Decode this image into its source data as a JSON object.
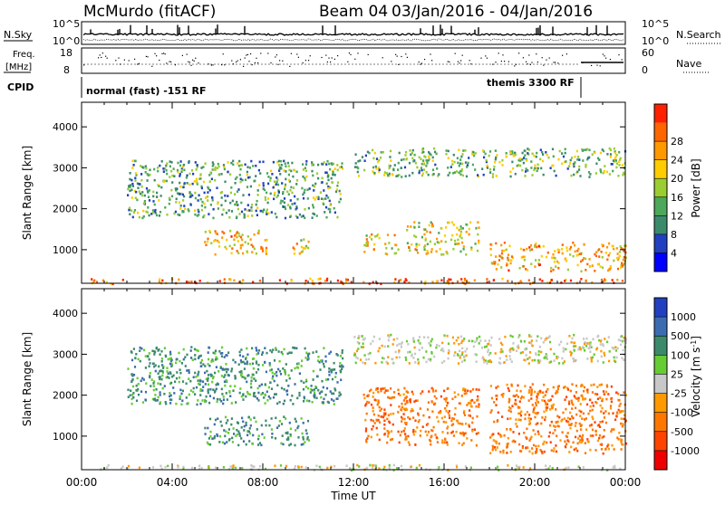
{
  "header": {
    "station": "McMurdo (fitACF)",
    "beam": "Beam 04",
    "dates": "03/Jan/2016 - 04/Jan/2016"
  },
  "top_panels": {
    "nsky_label": "N.Sky",
    "nsky_ticks": [
      "10^5",
      "10^0"
    ],
    "nsearch_label": "N.Search",
    "nsearch_ticks": [
      "10^5",
      "10^0"
    ],
    "freq_label_1": "Freq.",
    "freq_label_2": "[MHz]",
    "freq_ticks": [
      "18",
      "8"
    ],
    "nave_label": "Nave",
    "nave_ticks": [
      "60",
      "0"
    ],
    "cpid_label": "CPID",
    "cpid_mode_1": "normal (fast) -151 RF",
    "cpid_mode_2": "themis 3300 RF"
  },
  "chart_data": [
    {
      "type": "heatmap",
      "title": "",
      "xlabel": "Time UT",
      "ylabel": "Slant Range [km]",
      "x_ticks": [
        "00:00",
        "04:00",
        "08:00",
        "12:00",
        "16:00",
        "20:00",
        "00:00"
      ],
      "y_ticks": [
        1000,
        2000,
        3000,
        4000
      ],
      "xlim_hours": [
        0,
        24
      ],
      "ylim_km": [
        180,
        4600
      ],
      "colorbar": {
        "label": "Power [dB]",
        "ticks": [
          "4",
          "8",
          "12",
          "16",
          "20",
          "24",
          "28"
        ],
        "colors": [
          "#0000ff",
          "#2040c0",
          "#3c8a6c",
          "#4ca85a",
          "#9acd32",
          "#ffcc00",
          "#ff9900",
          "#ff6600",
          "#ff2000"
        ]
      },
      "echo_regions": [
        {
          "t0": 0.3,
          "t1": 24,
          "r0": 190,
          "r1": 320,
          "level": 0.9
        },
        {
          "t0": 5.4,
          "t1": 8.2,
          "r0": 900,
          "r1": 1500,
          "level": 0.75
        },
        {
          "t0": 9.3,
          "t1": 10.0,
          "r0": 900,
          "r1": 1300,
          "level": 0.7
        },
        {
          "t0": 12.4,
          "t1": 14.0,
          "r0": 900,
          "r1": 1400,
          "level": 0.7
        },
        {
          "t0": 14.3,
          "t1": 17.5,
          "r0": 900,
          "r1": 1700,
          "level": 0.65
        },
        {
          "t0": 18.0,
          "t1": 24.0,
          "r0": 500,
          "r1": 1200,
          "level": 0.75
        },
        {
          "t0": 12.0,
          "t1": 24.0,
          "r0": 2800,
          "r1": 3500,
          "level": 0.45
        },
        {
          "t0": 2.0,
          "t1": 11.5,
          "r0": 1800,
          "r1": 3200,
          "level": 0.4
        }
      ]
    },
    {
      "type": "heatmap",
      "title": "",
      "xlabel": "Time UT",
      "ylabel": "Slant Range [km]",
      "x_ticks": [
        "00:00",
        "04:00",
        "08:00",
        "12:00",
        "16:00",
        "20:00",
        "00:00"
      ],
      "y_ticks": [
        1000,
        2000,
        3000,
        4000
      ],
      "xlim_hours": [
        0,
        24
      ],
      "ylim_km": [
        180,
        4600
      ],
      "colorbar": {
        "label": "Velocity [m s^-1]",
        "ticks": [
          "1000",
          "500",
          "100",
          "25",
          "-25",
          "-100",
          "-500",
          "-1000"
        ],
        "colors": [
          "#2040c0",
          "#3c6cb0",
          "#3c8a6c",
          "#66cc33",
          "#c8c8c8",
          "#ff9900",
          "#ff7700",
          "#ff4400",
          "#ee0000"
        ]
      },
      "echo_regions": [
        {
          "t0": 0.3,
          "t1": 24,
          "r0": 190,
          "r1": 320,
          "level": 0.6
        },
        {
          "t0": 5.4,
          "t1": 10.0,
          "r0": 800,
          "r1": 1500,
          "level": 0.3
        },
        {
          "t0": 12.4,
          "t1": 17.5,
          "r0": 800,
          "r1": 2200,
          "level": 0.7
        },
        {
          "t0": 18.0,
          "t1": 24.0,
          "r0": 600,
          "r1": 2300,
          "level": 0.75
        },
        {
          "t0": 12.0,
          "t1": 24.0,
          "r0": 2800,
          "r1": 3500,
          "level": 0.5
        },
        {
          "t0": 2.0,
          "t1": 11.5,
          "r0": 1800,
          "r1": 3200,
          "level": 0.35
        }
      ]
    }
  ]
}
